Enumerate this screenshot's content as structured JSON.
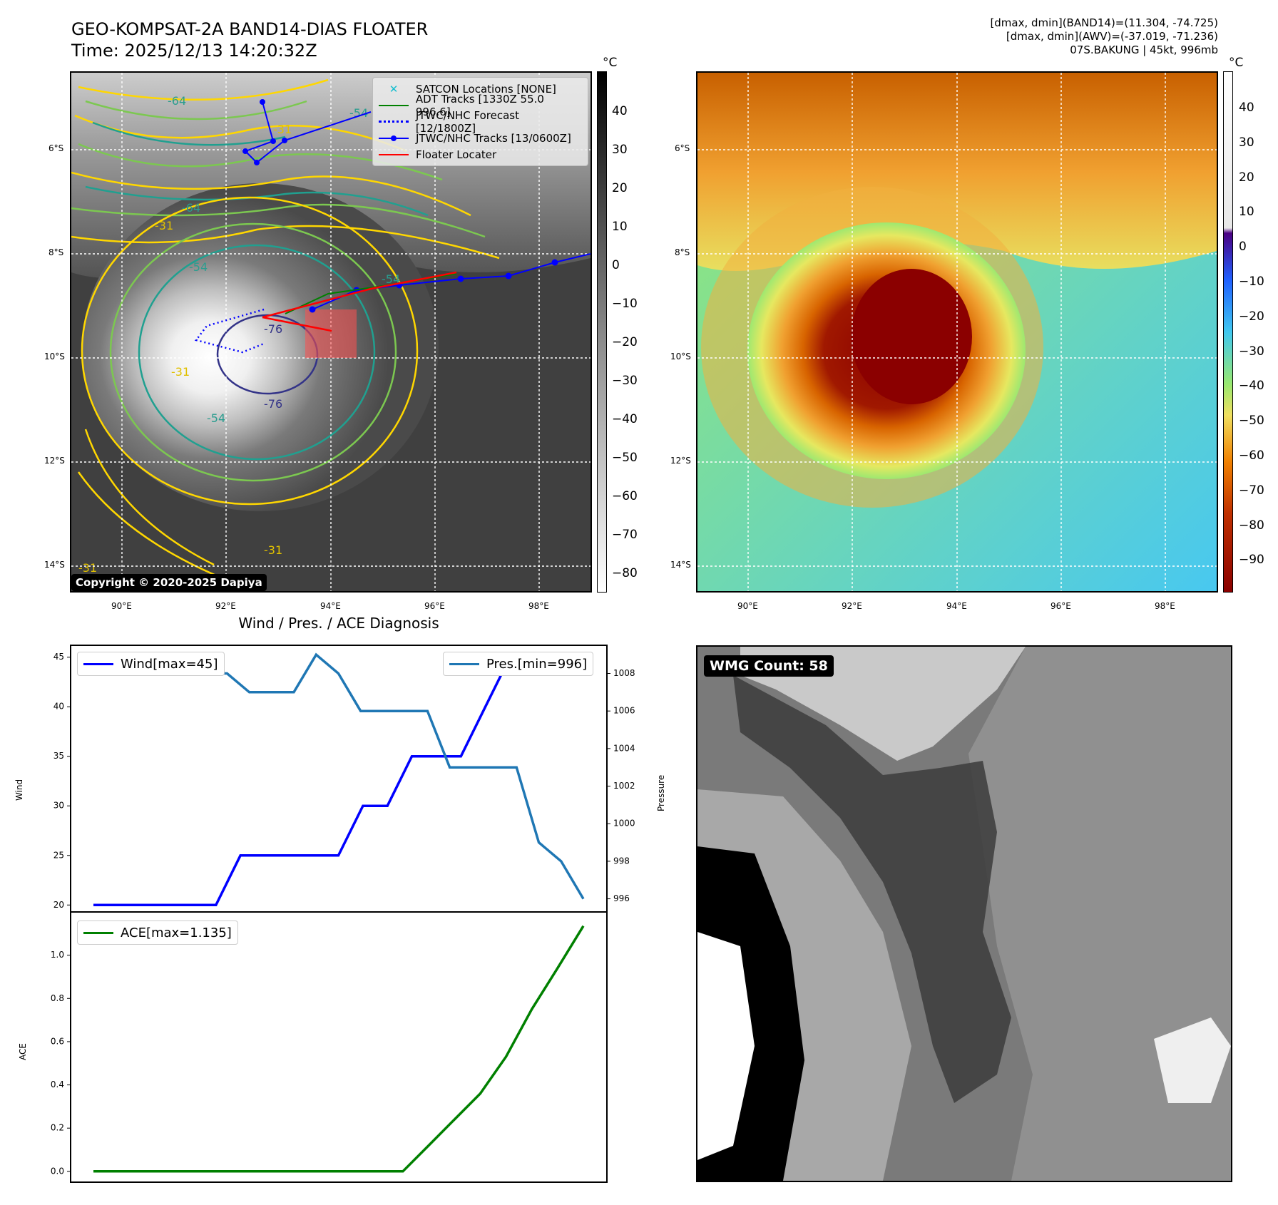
{
  "header": {
    "title_line1": "GEO-KOMPSAT-2A BAND14-DIAS FLOATER",
    "title_line2": "Time: 2025/12/13 14:20:32Z",
    "info_line1": "[dmax, dmin](BAND14)=(11.304, -74.725)",
    "info_line2": "[dmax, dmin](AWV)=(-37.019, -71.236)",
    "info_line3": "07S.BAKUNG | 45kt, 996mb"
  },
  "map": {
    "lat_labels": [
      "6°S",
      "8°S",
      "10°S",
      "12°S",
      "14°S"
    ],
    "lon_labels": [
      "90°E",
      "92°E",
      "94°E",
      "96°E",
      "98°E"
    ],
    "copyright": "Copyright © 2020-2025 Dapiya",
    "contour_labels": [
      "-64",
      "-54",
      "-31",
      "-64",
      "-31",
      "-54",
      "-54",
      "-76",
      "-76",
      "-31",
      "-54",
      "-31",
      "-31"
    ],
    "legend": [
      {
        "label": "SATCON Locations [NONE]",
        "color": "#17becf",
        "style": "x"
      },
      {
        "label": "ADT Tracks [1330Z 55.0 996.6]",
        "color": "#008000",
        "style": "solid"
      },
      {
        "label": "JTWC/NHC Forecast [12/1800Z]",
        "color": "#0000ff",
        "style": "dotted"
      },
      {
        "label": "JTWC/NHC Tracks [13/0600Z]",
        "color": "#0000ff",
        "style": "dot-line"
      },
      {
        "label": "Floater Locater",
        "color": "#ff0000",
        "style": "solid"
      }
    ]
  },
  "colorbar_gray": {
    "unit": "°C",
    "ticks": [
      "40",
      "30",
      "20",
      "10",
      "0",
      "−10",
      "−20",
      "−30",
      "−40",
      "−50",
      "−60",
      "−70",
      "−80"
    ]
  },
  "colorbar_color": {
    "unit": "°C",
    "ticks": [
      "40",
      "30",
      "20",
      "10",
      "0",
      "−10",
      "−20",
      "−30",
      "−40",
      "−50",
      "−60",
      "−70",
      "−80",
      "−90"
    ]
  },
  "diagnosis": {
    "title": "Wind / Pres. / ACE Diagnosis",
    "wind_axis_label": "Wind",
    "pressure_axis_label": "Pressure",
    "ace_axis_label": "ACE",
    "wind_legend": "Wind[max=45]",
    "pressure_legend": "Pres.[min=996]",
    "ace_legend": "ACE[max=1.135]",
    "wind_ticks": [
      "45",
      "40",
      "35",
      "30",
      "25",
      "20"
    ],
    "pressure_ticks": [
      "1008",
      "1006",
      "1004",
      "1002",
      "1000",
      "998",
      "996"
    ],
    "ace_ticks": [
      "1.0",
      "0.8",
      "0.6",
      "0.4",
      "0.2",
      "0.0"
    ]
  },
  "wmg": {
    "count_label": "WMG Count: 58"
  },
  "colors": {
    "wind": "#0000ff",
    "pressure": "#1f77b4",
    "ace": "#008000"
  },
  "chart_data": [
    {
      "type": "line",
      "title": "Wind / Pres. / ACE Diagnosis",
      "ylabel": "Wind",
      "ylabel_right": "Pressure",
      "ylim": [
        19.3,
        46.2
      ],
      "ylim_right": [
        995.3,
        1009.5
      ],
      "series": [
        {
          "name": "Wind[max=45]",
          "values": [
            20,
            20,
            20,
            20,
            20,
            20,
            25,
            25,
            25,
            25,
            25,
            30,
            30,
            35,
            35,
            35,
            40,
            45,
            45,
            45,
            45
          ]
        },
        {
          "name": "Pres.[min=996]",
          "values": [
            1008,
            1008,
            1008,
            1008,
            1008,
            1008,
            1008,
            1007,
            1007,
            1007,
            1009,
            1008,
            1006,
            1006,
            1006,
            1006,
            1003,
            1003,
            1003,
            1003,
            999,
            998,
            996
          ]
        }
      ]
    },
    {
      "type": "line",
      "ylabel": "ACE",
      "ylim": [
        -0.05,
        1.2
      ],
      "series": [
        {
          "name": "ACE[max=1.135]",
          "values": [
            0,
            0,
            0,
            0,
            0,
            0,
            0,
            0,
            0,
            0,
            0,
            0,
            0,
            0.12,
            0.24,
            0.36,
            0.53,
            0.75,
            0.94,
            1.135
          ]
        }
      ]
    }
  ]
}
